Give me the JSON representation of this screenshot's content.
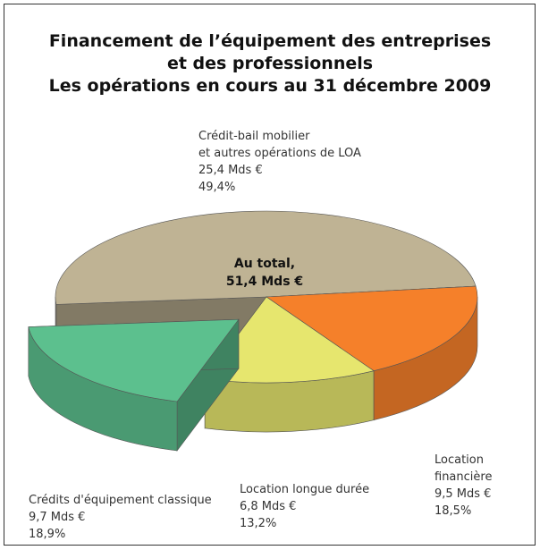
{
  "chart_data": {
    "type": "pie",
    "title": [
      "Financement de l’équipement des entreprises",
      "et des professionnels",
      "Les opérations en cours au 31 décembre 2009"
    ],
    "categories": [
      "Crédit-bail mobilier\net autres opérations de LOA",
      "Location financière",
      "Location longue durée",
      "Crédits d'équipement classique"
    ],
    "values": [
      49.4,
      18.5,
      13.2,
      18.9
    ],
    "value_labels": [
      "49,4%",
      "18,5%",
      "13,2%",
      "18,9%"
    ],
    "amounts": [
      25.4,
      9.5,
      6.8,
      9.7
    ],
    "amount_labels": [
      "25,4 Mds €",
      "9,5 Mds €",
      "6,8 Mds €",
      "9,7 Mds €"
    ],
    "colors": [
      "#bfb394",
      "#f5802a",
      "#e6e66e",
      "#5cc08e"
    ],
    "total": 51.4,
    "total_label": "Au total,\n51,4 Mds €"
  }
}
